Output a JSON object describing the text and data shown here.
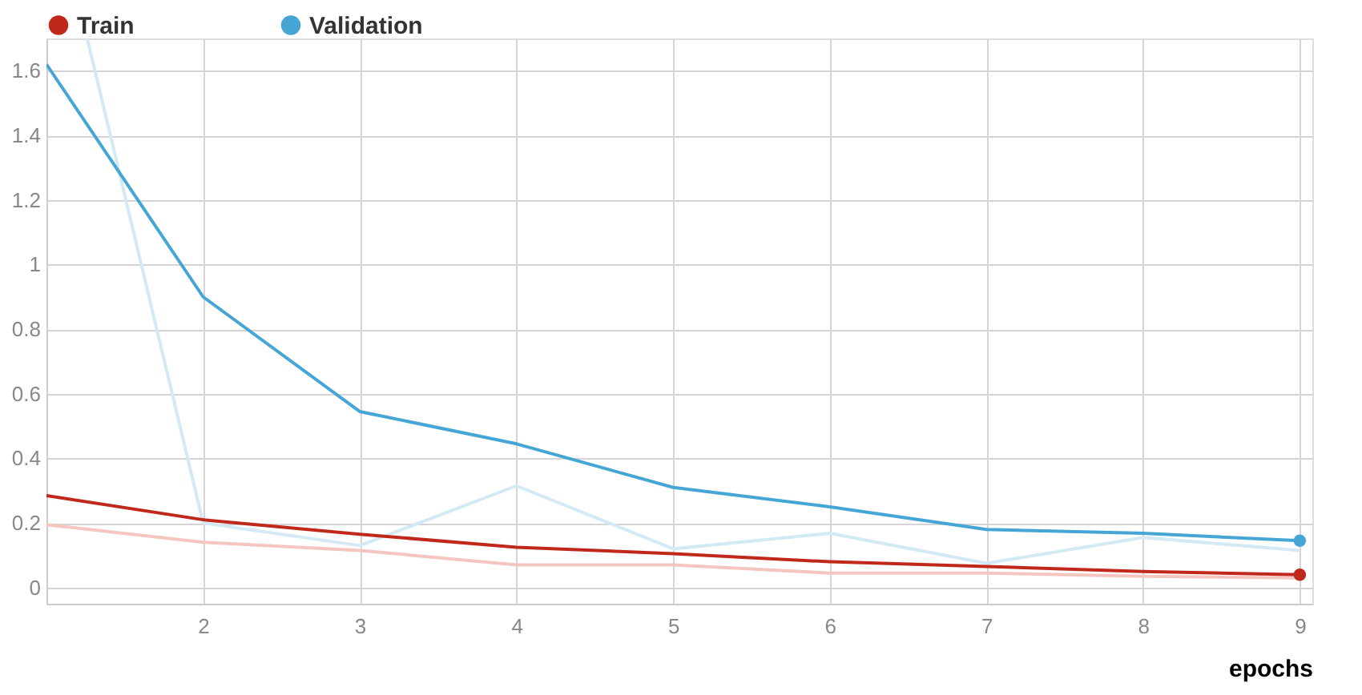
{
  "chart_data": {
    "type": "line",
    "xlabel": "epochs",
    "x": [
      1,
      2,
      3,
      4,
      5,
      6,
      7,
      8,
      9
    ],
    "series": [
      {
        "color": "#f5c6c0",
        "values": [
          0.195,
          0.14,
          0.115,
          0.07,
          0.07,
          0.045,
          0.045,
          0.035,
          0.03
        ]
      },
      {
        "color": "#d3eaf5",
        "x": [
          1.26,
          2,
          3,
          4,
          5,
          6,
          7,
          8,
          9
        ],
        "values": [
          1.7,
          0.2,
          0.13,
          0.315,
          0.12,
          0.168,
          0.075,
          0.155,
          0.115
        ]
      },
      {
        "name": "Train",
        "color": "#c0281b",
        "values": [
          0.285,
          0.21,
          0.165,
          0.125,
          0.105,
          0.08,
          0.065,
          0.05,
          0.04
        ]
      },
      {
        "name": "Validation",
        "color": "#45a6d6",
        "values": [
          1.62,
          0.9,
          0.545,
          0.445,
          0.31,
          0.25,
          0.18,
          0.168,
          0.145
        ]
      }
    ],
    "xlim": [
      1,
      9.08
    ],
    "ylim": [
      -0.05,
      1.7
    ],
    "xticks": [
      2,
      3,
      4,
      5,
      6,
      7,
      8,
      9
    ],
    "yticks": [
      0,
      0.2,
      0.4,
      0.6,
      0.8,
      1,
      1.2,
      1.4,
      1.6
    ],
    "grid": true,
    "legend": "top",
    "marker": "none",
    "line_style": "solid"
  }
}
